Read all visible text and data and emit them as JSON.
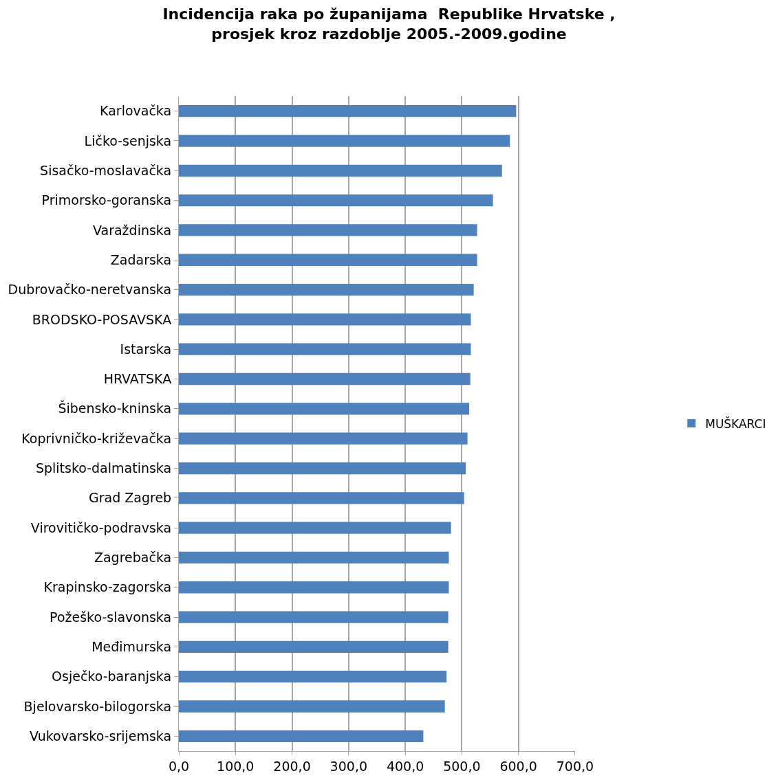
{
  "chart_data": {
    "type": "bar",
    "orientation": "horizontal",
    "title": "Incidencija raka po županijama  Republike Hrvatske , prosjek kroz razdoblje 2005.-2009.godine",
    "categories": [
      "Karlovačka",
      "Ličko-senjska",
      "Sisačko-moslavačka",
      "Primorsko-goranska",
      "Varaždinska",
      "Zadarska",
      "Dubrovačko-neretvanska",
      "BRODSKO-POSAVSKA",
      "Istarska",
      "HRVATSKA",
      "Šibensko-kninska",
      "Koprivničko-križevačka",
      "Splitsko-dalmatinska",
      "Grad Zagreb",
      "Virovitičko-podravska",
      "Zagrebačka",
      "Krapinsko-zagorska",
      "Požeško-slavonska",
      "Međimurska",
      "Osječko-baranjska",
      "Bjelovarsko-bilogorska",
      "Vukovarsko-srijemska"
    ],
    "series": [
      {
        "name": "MUŠKARCI",
        "color": "#4f81bd",
        "values": [
          596,
          585,
          571,
          555,
          527,
          527,
          521,
          516,
          516,
          515,
          513,
          510,
          507,
          504,
          481,
          477,
          477,
          476,
          476,
          473,
          470,
          432
        ]
      }
    ],
    "xlim": [
      0,
      700
    ],
    "xticks": [
      {
        "value": 0,
        "label": "0,0"
      },
      {
        "value": 100,
        "label": "100,0"
      },
      {
        "value": 200,
        "label": "200,0"
      },
      {
        "value": 300,
        "label": "300,0"
      },
      {
        "value": 400,
        "label": "400,0"
      },
      {
        "value": 500,
        "label": "500,0"
      },
      {
        "value": 600,
        "label": "600,0"
      },
      {
        "value": 700,
        "label": "700,0"
      }
    ],
    "grid": "x",
    "legend": "right"
  }
}
